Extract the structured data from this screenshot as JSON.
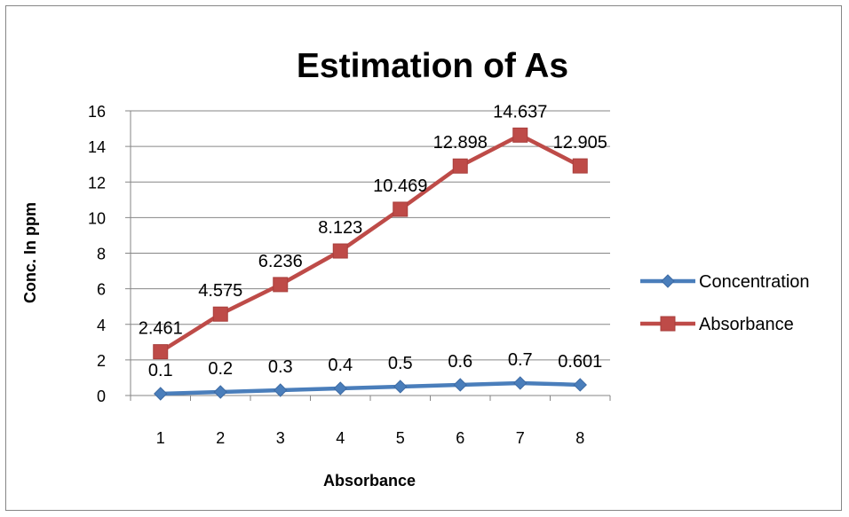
{
  "chart_data": {
    "type": "line",
    "title": "Estimation of As",
    "xlabel": "Absorbance",
    "ylabel": "Conc. In ppm",
    "categories": [
      "1",
      "2",
      "3",
      "4",
      "5",
      "6",
      "7",
      "8"
    ],
    "ylim": [
      0,
      16
    ],
    "yticks": [
      0,
      2,
      4,
      6,
      8,
      10,
      12,
      14,
      16
    ],
    "grid": true,
    "legend_position": "right",
    "series": [
      {
        "name": "Concentration",
        "values": [
          0.1,
          0.2,
          0.3,
          0.4,
          0.5,
          0.6,
          0.7,
          0.601
        ],
        "data_labels": [
          "0.1",
          "0.2",
          "0.3",
          "0.4",
          "0.5",
          "0.6",
          "0.7",
          "0.601"
        ],
        "marker": "diamond",
        "color": "#4A7EBB"
      },
      {
        "name": "Absorbance",
        "values": [
          2.461,
          4.575,
          6.236,
          8.123,
          10.469,
          12.898,
          14.637,
          12.905
        ],
        "data_labels": [
          "2.461",
          "4.575",
          "6.236",
          "8.123",
          "10.469",
          "12.898",
          "14.637",
          "12.905"
        ],
        "marker": "square",
        "color": "#BE4B48"
      }
    ]
  }
}
